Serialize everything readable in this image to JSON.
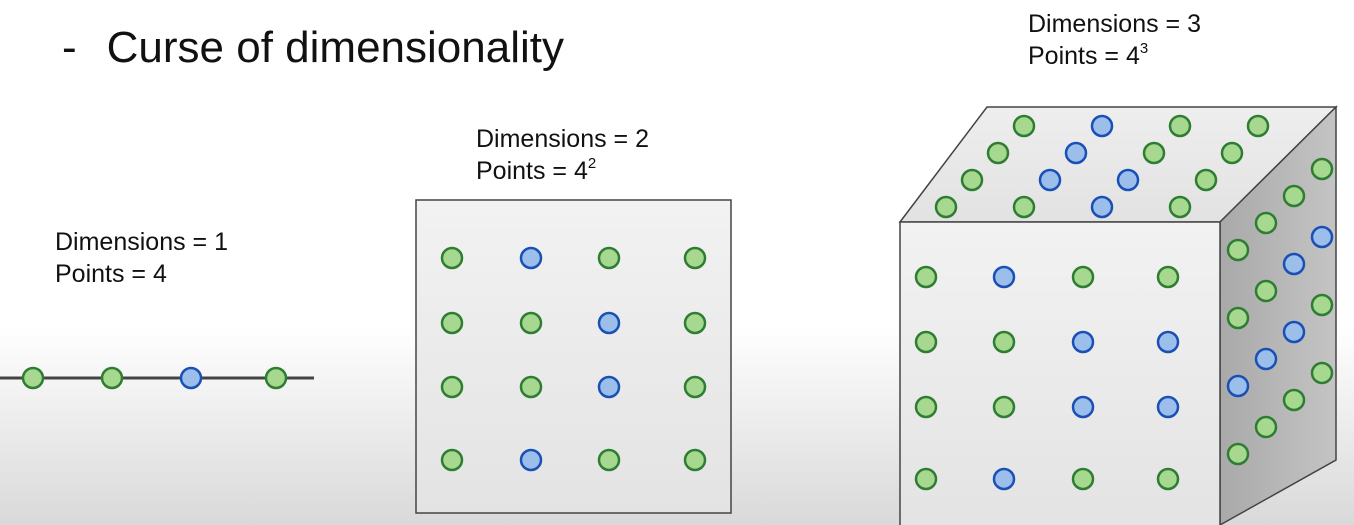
{
  "title": {
    "dash": "-",
    "text": "Curse of dimensionality"
  },
  "panels": [
    {
      "dims_label": "Dimensions = 1",
      "points_prefix": "Points = 4",
      "points_exp": ""
    },
    {
      "dims_label": "Dimensions = 2",
      "points_prefix": "Points = 4",
      "points_exp": "2"
    },
    {
      "dims_label": "Dimensions = 3",
      "points_prefix": "Points = 4",
      "points_exp": "3"
    }
  ],
  "colors": {
    "green_fill": "#a6d98f",
    "green_stroke": "#2e7d32",
    "blue_fill": "#9bbfea",
    "blue_stroke": "#1a4fb5",
    "line": "#444444",
    "box_border": "#444444"
  },
  "line_1d": [
    "green",
    "green",
    "blue",
    "green"
  ],
  "grid_2d": [
    [
      "green",
      "blue",
      "green",
      "green"
    ],
    [
      "green",
      "green",
      "blue",
      "green"
    ],
    [
      "green",
      "green",
      "blue",
      "green"
    ],
    [
      "green",
      "blue",
      "green",
      "green"
    ]
  ],
  "cube_front": [
    [
      "green",
      "blue",
      "green",
      "green"
    ],
    [
      "green",
      "green",
      "blue",
      "blue"
    ],
    [
      "green",
      "green",
      "blue",
      "blue"
    ],
    [
      "green",
      "blue",
      "green",
      "green"
    ]
  ],
  "cube_top": [
    [
      "green",
      "blue",
      "green",
      "green"
    ],
    [
      "green",
      "blue",
      "green",
      "green"
    ],
    [
      "green",
      "blue",
      "blue",
      "green"
    ],
    [
      "green",
      "green",
      "blue",
      "green"
    ]
  ],
  "cube_side": [
    [
      "green",
      "green",
      "green",
      "green"
    ],
    [
      "green",
      "green",
      "blue",
      "blue"
    ],
    [
      "blue",
      "blue",
      "blue",
      "green"
    ],
    [
      "green",
      "green",
      "green",
      "green"
    ]
  ]
}
